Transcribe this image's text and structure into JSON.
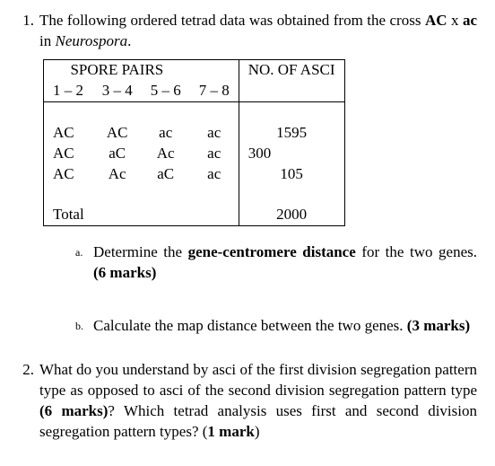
{
  "q1": {
    "num": "1.",
    "intro_pre": "The following ordered tetrad data was obtained from the cross ",
    "cross_left": "AC",
    "cross_x": " x ",
    "cross_right": "ac",
    "intro_mid": " in ",
    "organism": "Neurospora",
    "intro_end": ".",
    "table": {
      "spore_heading": "SPORE PAIRS",
      "no_heading": "NO. OF ASCI",
      "cols": [
        "1 – 2",
        "3 – 4",
        "5 – 6",
        "7 – 8"
      ],
      "rows": [
        {
          "c": [
            "AC",
            "AC",
            "ac",
            "ac"
          ],
          "n": "1595"
        },
        {
          "c": [
            "AC",
            "aC",
            "Ac",
            "ac"
          ],
          "n": "300"
        },
        {
          "c": [
            "AC",
            "Ac",
            "aC",
            "ac"
          ],
          "n": "105"
        }
      ],
      "total_label": "Total",
      "total_value": "2000"
    },
    "a": {
      "num": "a.",
      "pre": "Determine the ",
      "bold": "gene-centromere distance",
      "mid": " for the two genes. ",
      "marks": "(6 marks)"
    },
    "b": {
      "num": "b.",
      "text_pre": "Calculate the map distance between the two genes. ",
      "marks": "(3 marks)"
    }
  },
  "q2": {
    "num": "2.",
    "pre": "What do you understand by asci of the first division segregation pattern type as opposed to asci of the second division segregation pattern type ",
    "marks1": "(6 marks)",
    "mid": "? Which tetrad analysis uses first and second division segregation pattern types? (",
    "marks2": "1 mark",
    "end": ")"
  }
}
